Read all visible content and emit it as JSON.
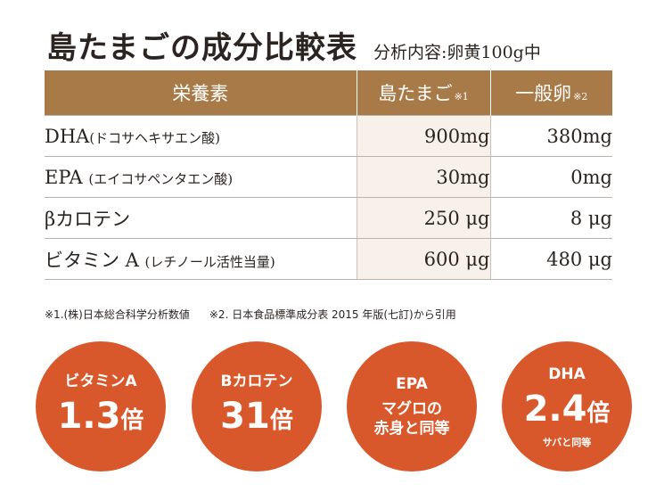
{
  "title": "島たまごの成分比較表",
  "subtitle": "分析内容:卵黄100g中",
  "table": {
    "headers": {
      "nutrient": "栄養素",
      "island": "島たまご",
      "island_note": "※1",
      "normal": "一般卵",
      "normal_note": "※2"
    },
    "rows": [
      {
        "name": "DHA",
        "sub": "(ドコサヘキサエン酸)",
        "island": "900mg",
        "normal": "380mg"
      },
      {
        "name": "EPA",
        "sub": "(エイコサペンタエン酸)",
        "island": "30mg",
        "normal": "0mg"
      },
      {
        "name": "βカロテン",
        "sub": "",
        "island": "250 μg",
        "normal": "8 μg"
      },
      {
        "name": "ビタミン A",
        "sub": "(レチノール活性当量)",
        "island": "600 μg",
        "normal": "480 μg"
      }
    ]
  },
  "footnotes": {
    "note1": "※1.(株)日本総合科学分析数値",
    "note2": "※2. 日本食品標準成分表 2015 年版(七訂)から引用"
  },
  "badges": [
    {
      "label": "ビタミンA",
      "value": "1.3",
      "unit": "倍",
      "small": ""
    },
    {
      "label": "Bカロテン",
      "value": "31",
      "unit": "倍",
      "small": ""
    },
    {
      "label": "EPA",
      "line2": "マグロの",
      "line3": "赤身と同等"
    },
    {
      "label": "DHA",
      "value": "2.4",
      "unit": "倍",
      "small": "サバと同等"
    }
  ],
  "colors": {
    "header_bg": "#a87a47",
    "badge_bg": "#d9582b",
    "highlight_col_bg": "#f7f1e9"
  }
}
